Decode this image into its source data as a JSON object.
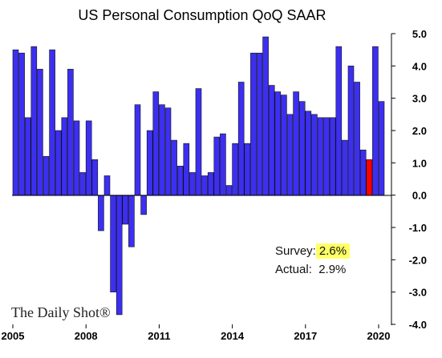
{
  "chart_data": {
    "type": "bar",
    "title": "US Personal Consumption QoQ SAAR",
    "ylim": [
      -4.0,
      5.0
    ],
    "y_ticks": [
      "5.0",
      "4.0",
      "3.0",
      "2.0",
      "1.0",
      "0.0",
      "-1.0",
      "-2.0",
      "-3.0",
      "-4.0"
    ],
    "x_tick_labels": [
      "2005",
      "2008",
      "2011",
      "2014",
      "2017",
      "2020"
    ],
    "grid": false,
    "bar_color": "#3c2ff0",
    "highlight_color": "#ff0000",
    "highlight_index": 58,
    "values": [
      4.5,
      4.4,
      2.4,
      4.6,
      3.9,
      1.2,
      4.5,
      2.0,
      2.4,
      3.9,
      2.3,
      0.7,
      2.3,
      1.1,
      -1.1,
      0.6,
      -3.0,
      -3.7,
      -0.9,
      -1.6,
      2.8,
      -0.6,
      2.0,
      3.2,
      2.8,
      2.7,
      1.7,
      0.9,
      1.6,
      0.7,
      3.3,
      0.6,
      0.7,
      1.8,
      1.9,
      0.3,
      1.6,
      3.5,
      1.6,
      4.4,
      4.4,
      4.9,
      3.4,
      3.2,
      3.1,
      2.5,
      3.2,
      2.9,
      2.6,
      2.5,
      2.4,
      2.4,
      2.4,
      4.6,
      1.7,
      4.0,
      3.5,
      1.4,
      1.1,
      4.6,
      2.9
    ]
  },
  "annotation": {
    "survey_label": "Survey:",
    "survey_value": "2.6%",
    "actual_label": "Actual:",
    "actual_value": "2.9%"
  },
  "watermark": "The Daily Shot®"
}
